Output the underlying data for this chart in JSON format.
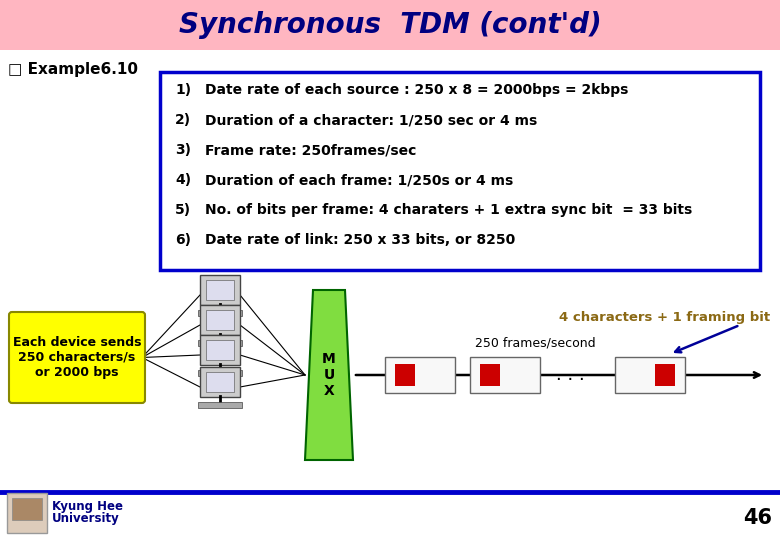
{
  "title": "Synchronous  TDM (cont'd)",
  "title_color": "#000080",
  "title_bg": "#FFB6C1",
  "title_fontsize": 20,
  "example_label": "Example6.10",
  "bullet_items": [
    "Date rate of each source : 250 x 8 = 2000bps = 2kbps",
    "Duration of a character: 1/250 sec or 4 ms",
    "Frame rate: 250frames/sec",
    "Duration of each frame: 1/250s or 4 ms",
    "No. of bits per frame: 4 charaters + 1 extra sync bit  = 33 bits",
    "Date rate of link: 250 x 33 bits, or 8250"
  ],
  "bullet_numbers": [
    "1)",
    "2)",
    "3)",
    "4)",
    "5)",
    "6)"
  ],
  "box_border_color": "#0000CC",
  "yellow_box_text": "Each device sends\n250 characters/s\nor 2000 bps",
  "yellow_box_color": "#FFFF00",
  "mux_color": "#80DD40",
  "mux_label": "M\nU\nX",
  "annotation_text": "4 characters + 1 framing bit",
  "annotation_color": "#8B6914",
  "frames_label": "250 frames/second",
  "bg_color": "#FFFFFF",
  "footer_text_line1": "Kyung Hee",
  "footer_text_line2": "University",
  "page_number": "46",
  "footer_line_color": "#0000CC",
  "red_color": "#CC0000",
  "text_color_dark": "#000080"
}
